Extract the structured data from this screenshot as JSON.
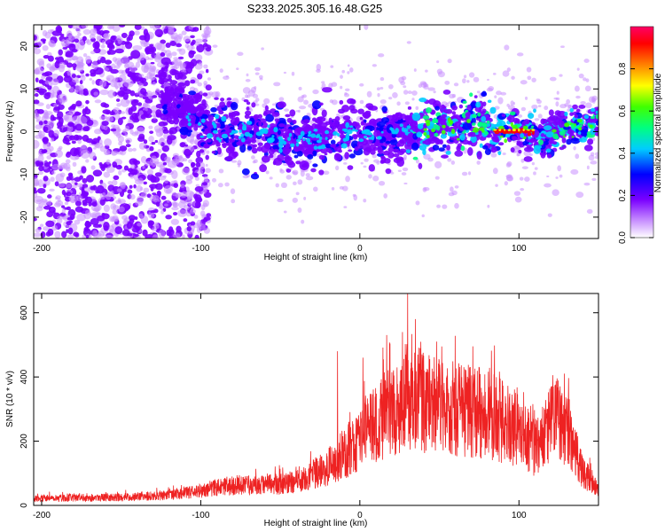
{
  "title": "S233.2025.305.16.48.G25",
  "chart_data": [
    {
      "type": "heatmap",
      "panel": "spectrogram",
      "xlabel": "Height of straight line (km)",
      "ylabel": "Frequency (Hz)",
      "xlim": [
        -205,
        150
      ],
      "ylim": [
        -25,
        25
      ],
      "xticks": [
        -200,
        -100,
        0,
        100
      ],
      "yticks": [
        -20,
        -10,
        0,
        10,
        20
      ],
      "xtick_labels": [
        "-200",
        "-100",
        "0",
        "100"
      ],
      "ytick_labels": [
        "-20",
        "-10",
        "0",
        "10",
        "20"
      ],
      "ridge": {
        "description_points_x": [
          -125,
          -110,
          -100,
          -80,
          -60,
          -40,
          -20,
          0,
          20,
          40,
          60,
          70,
          80,
          85,
          100,
          110,
          115,
          120,
          130,
          150
        ],
        "description_points_y": [
          10,
          5,
          2,
          0,
          0,
          -3,
          -1,
          0,
          -1,
          1,
          1,
          2,
          1,
          0,
          0,
          0,
          -2,
          0,
          1,
          2
        ]
      },
      "colorbar": {
        "label": "Normalized spectral amplitude",
        "range": [
          0.0,
          1.0
        ],
        "ticks": [
          0.0,
          0.2,
          0.4,
          0.6,
          0.8
        ],
        "tick_labels": [
          "0.0",
          "0.2",
          "0.4",
          "0.6",
          "0.8"
        ]
      }
    },
    {
      "type": "line",
      "panel": "snr",
      "xlabel": "Height of straight line (km)",
      "ylabel": "SNR (10 * v/v)",
      "xlim": [
        -205,
        150
      ],
      "ylim": [
        0,
        660
      ],
      "xticks": [
        -200,
        -100,
        0,
        100
      ],
      "yticks": [
        0,
        200,
        400,
        600
      ],
      "xtick_labels": [
        "-200",
        "-100",
        "0",
        "100"
      ],
      "ytick_labels": [
        "0",
        "200",
        "400",
        "600"
      ],
      "color": "#ee2222",
      "envelope": {
        "x": [
          -205,
          -150,
          -120,
          -100,
          -80,
          -60,
          -40,
          -20,
          0,
          20,
          30,
          40,
          60,
          80,
          100,
          110,
          115,
          120,
          125,
          130,
          140,
          150
        ],
        "y": [
          25,
          28,
          35,
          50,
          70,
          70,
          80,
          130,
          230,
          330,
          380,
          360,
          330,
          320,
          260,
          200,
          230,
          280,
          300,
          270,
          120,
          50
        ]
      },
      "peaks": [
        {
          "x": 30,
          "y": 660
        },
        {
          "x": -14,
          "y": 480
        },
        {
          "x": 2,
          "y": 460
        },
        {
          "x": 39,
          "y": 470
        }
      ]
    }
  ]
}
